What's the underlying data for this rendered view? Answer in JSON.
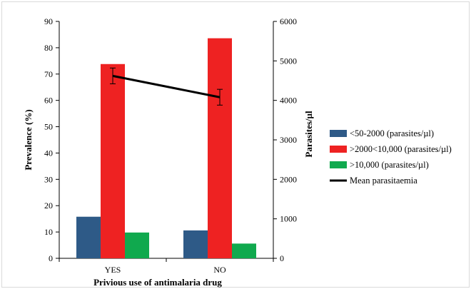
{
  "chart_data": {
    "type": "bar",
    "categories": [
      "YES",
      "NO"
    ],
    "xlabel": "Privious use of antimalaria drug",
    "ylabel": "Prevalence (%)",
    "y2label": "Parasites/µl",
    "ylim": [
      0,
      90
    ],
    "y2lim": [
      0,
      6000
    ],
    "yticks": [
      0,
      10,
      20,
      30,
      40,
      50,
      60,
      70,
      80,
      90
    ],
    "y2ticks": [
      0,
      1000,
      2000,
      3000,
      4000,
      5000,
      6000
    ],
    "grid": false,
    "legend_position": "right",
    "series": [
      {
        "name": "<50-2000  (parasites/µl)",
        "axis": "left",
        "kind": "bar",
        "color": "#2e5a87",
        "values": [
          15.8,
          10.6
        ]
      },
      {
        "name": ">2000<10,000  (parasites/µl)",
        "axis": "left",
        "kind": "bar",
        "color": "#ee2222",
        "values": [
          73.8,
          83.6
        ]
      },
      {
        "name": ">10,000  (parasites/µl)",
        "axis": "left",
        "kind": "bar",
        "color": "#10a94e",
        "values": [
          9.8,
          5.6
        ]
      },
      {
        "name": "Mean parasitaemia",
        "axis": "right",
        "kind": "line",
        "color": "#000000",
        "values": [
          4620,
          4080
        ],
        "error": [
          200,
          200
        ]
      }
    ]
  }
}
